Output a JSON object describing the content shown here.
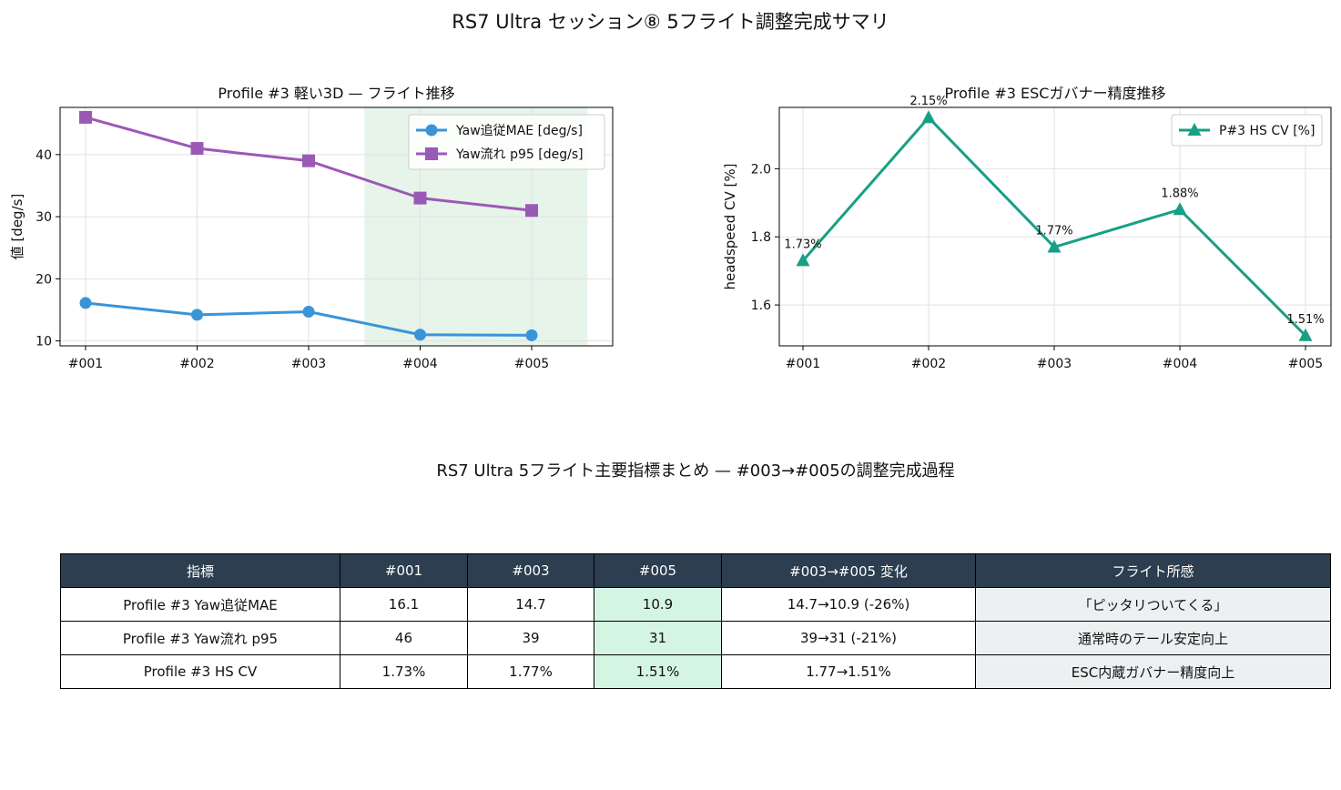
{
  "figure": {
    "suptitle": "RS7 Ultra セッション⑧ 5フライト調整完成サマリ",
    "table_title": "RS7 Ultra 5フライト主要指標まとめ — #003→#005の調整完成過程"
  },
  "chart_data": [
    {
      "type": "line",
      "title": "Profile #3 軽い3D — フライト推移",
      "xlabel": "",
      "ylabel": "値 [deg/s]",
      "categories": [
        "#001",
        "#002",
        "#003",
        "#004",
        "#005"
      ],
      "ylim": [
        9.2,
        47.6
      ],
      "yticks": [
        10,
        20,
        30,
        40
      ],
      "grid": true,
      "legend_position": "upper right",
      "highlight_span": {
        "from": "#004",
        "to": "#005",
        "color": "#e6f4ea"
      },
      "series": [
        {
          "name": "Yaw追従MAE [deg/s]",
          "values": [
            16.1,
            14.2,
            14.7,
            11.0,
            10.9
          ],
          "color": "#3a94d8",
          "marker": "circle"
        },
        {
          "name": "Yaw流れ p95 [deg/s]",
          "values": [
            46,
            41,
            39,
            33,
            31
          ],
          "color": "#9b59b6",
          "marker": "square"
        }
      ]
    },
    {
      "type": "line",
      "title": "Profile #3 ESCガバナー精度推移",
      "xlabel": "",
      "ylabel": "headspeed CV [%]",
      "categories": [
        "#001",
        "#002",
        "#003",
        "#004",
        "#005"
      ],
      "ylim": [
        1.48,
        2.18
      ],
      "yticks": [
        1.6,
        1.8,
        2.0
      ],
      "grid": true,
      "legend_position": "upper right",
      "series": [
        {
          "name": "P#3 HS CV [%]",
          "values": [
            1.73,
            2.15,
            1.77,
            1.88,
            1.51
          ],
          "color": "#16a085",
          "marker": "triangle",
          "data_labels": [
            "1.73%",
            "2.15%",
            "1.77%",
            "1.88%",
            "1.51%"
          ]
        }
      ]
    }
  ],
  "table": {
    "headers": [
      "指標",
      "#001",
      "#003",
      "#005",
      "#003→#005 変化",
      "フライト所感"
    ],
    "rows": [
      [
        "Profile #3 Yaw追従MAE",
        "16.1",
        "14.7",
        "10.9",
        "14.7→10.9 (-26%)",
        "「ピッタリついてくる」"
      ],
      [
        "Profile #3 Yaw流れ p95",
        "46",
        "39",
        "31",
        "39→31 (-21%)",
        "通常時のテール安定向上"
      ],
      [
        "Profile #3 HS CV",
        "1.73%",
        "1.77%",
        "1.51%",
        "1.77→1.51%",
        "ESC内蔵ガバナー精度向上"
      ]
    ],
    "colors": {
      "header_bg": "#2c3e50",
      "header_text": "#ffffff",
      "highlight": "#d5f5e3",
      "note_bg": "#ecf0f1"
    }
  }
}
